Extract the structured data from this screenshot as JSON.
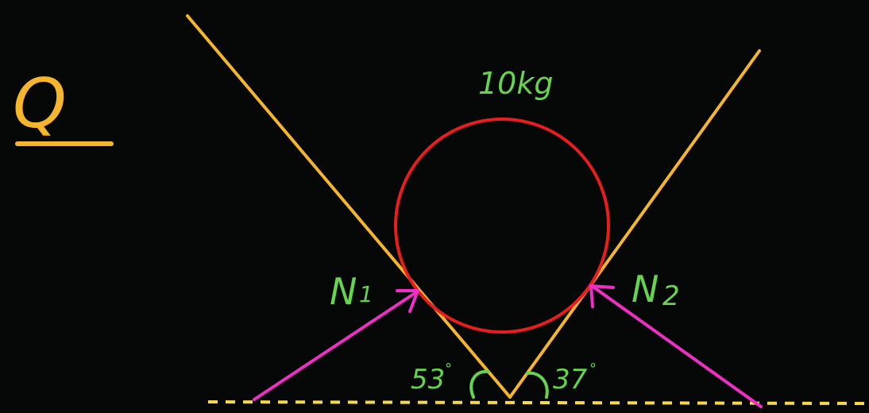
{
  "question_label": "Q",
  "mass_label": "10kg",
  "normal_force_1": "N",
  "normal_force_1_sub": "1",
  "normal_force_2": "N",
  "normal_force_2_sub": "2",
  "angle_left": "53",
  "angle_right": "37",
  "degree_mark": "°",
  "colors": {
    "background": "#050807",
    "incline": "#f5b52c",
    "sphere": "#e81d1d",
    "force_arrow": "#ee2fc6",
    "label": "#67d44f",
    "ground": "#f5d94a"
  }
}
